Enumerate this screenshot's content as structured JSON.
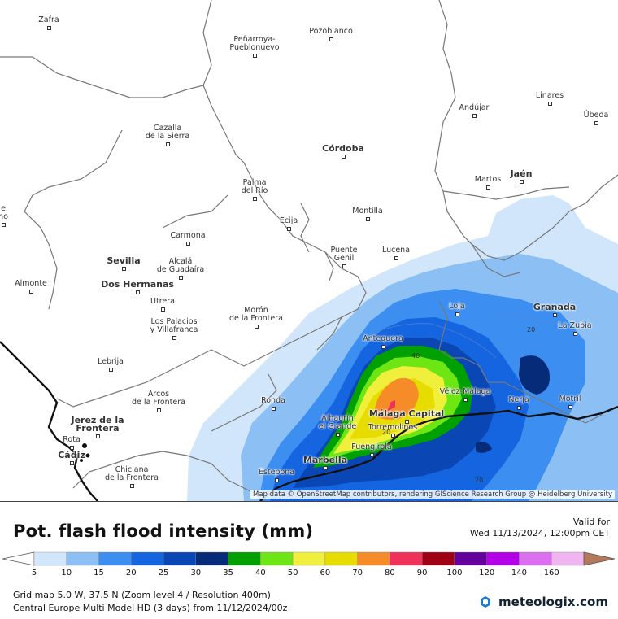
{
  "map": {
    "attribution": "Map data © OpenStreetMap contributors, rendering GIScience Research Group @ Heidelberg University",
    "cities": [
      {
        "name": "Zafra",
        "major": false
      },
      {
        "name": "Peñarroya-\nPueblonuevo",
        "major": false
      },
      {
        "name": "Pozoblanco",
        "major": false
      },
      {
        "name": "Linares",
        "major": false
      },
      {
        "name": "Andújar",
        "major": false
      },
      {
        "name": "Úbeda",
        "major": false
      },
      {
        "name": "Cazalla\nde la Sierra",
        "major": false
      },
      {
        "name": "Córdoba",
        "major": true
      },
      {
        "name": "Palma\ndel Río",
        "major": false
      },
      {
        "name": "Martos",
        "major": false
      },
      {
        "name": "Jaén",
        "major": true
      },
      {
        "name": "Écija",
        "major": false
      },
      {
        "name": "Montilla",
        "major": false
      },
      {
        "name": "Carmona",
        "major": false
      },
      {
        "name": "Sevilla",
        "major": true
      },
      {
        "name": "Alcalá\nde Guadaíra",
        "major": false
      },
      {
        "name": "Puente\nGenil",
        "major": false
      },
      {
        "name": "Lucena",
        "major": false
      },
      {
        "name": "Almonte",
        "major": false
      },
      {
        "name": "Dos Hermanas",
        "major": true
      },
      {
        "name": "Utrera",
        "major": false
      },
      {
        "name": "Los Palacios\ny Villafranca",
        "major": false
      },
      {
        "name": "Morón\nde la Frontera",
        "major": false
      },
      {
        "name": "Loja",
        "major": false
      },
      {
        "name": "Granada",
        "major": true
      },
      {
        "name": "La Zubia",
        "major": false
      },
      {
        "name": "Antequera",
        "major": false
      },
      {
        "name": "Lebrija",
        "major": false
      },
      {
        "name": "Arcos\nde la Frontera",
        "major": false
      },
      {
        "name": "Ronda",
        "major": false
      },
      {
        "name": "Vélez-Málaga",
        "major": false
      },
      {
        "name": "Nerja",
        "major": false
      },
      {
        "name": "Motril",
        "major": false
      },
      {
        "name": "Jerez de la\nFrontera",
        "major": true
      },
      {
        "name": "Alhaurín\nel Grande",
        "major": false
      },
      {
        "name": "Málaga Capital",
        "major": true
      },
      {
        "name": "Torremolinos",
        "major": false
      },
      {
        "name": "Rota",
        "major": false
      },
      {
        "name": "Cádiz",
        "major": true
      },
      {
        "name": "Fuengirola",
        "major": false
      },
      {
        "name": "Chiclana\nde la Frontera",
        "major": false
      },
      {
        "name": "Marbella",
        "major": true
      },
      {
        "name": "Estepona",
        "major": false
      },
      {
        "name": "e\nno",
        "major": false
      }
    ],
    "contour_labels": [
      "40",
      "20",
      "20",
      "20"
    ]
  },
  "footer": {
    "title": "Pot. flash flood intensity (mm)",
    "valid_label": "Valid for",
    "valid_value": "Wed 11/13/2024, 12:00pm CET",
    "legend": {
      "ticks": [
        "5",
        "10",
        "15",
        "20",
        "25",
        "30",
        "35",
        "40",
        "50",
        "60",
        "70",
        "80",
        "90",
        "100",
        "120",
        "140",
        "160"
      ],
      "colors": [
        "#d2e6fb",
        "#8cc0f5",
        "#3c8ff0",
        "#1565e0",
        "#0a47b4",
        "#062b78",
        "#00a000",
        "#6ee614",
        "#f0f03c",
        "#e6dc00",
        "#f58c28",
        "#f0325a",
        "#a00014",
        "#64009b",
        "#b400e6",
        "#dc6ef0",
        "#f0b4f0",
        "#b4785a"
      ],
      "left_arrow_color": "#ffffff",
      "right_arrow_color": "#b4785a"
    },
    "grid_info": "Grid map 5.0 W, 37.5 N (Zoom level 4 / Resolution 400m)",
    "model_info": "Central Europe Multi Model HD (3 days) from  11/12/2024/00z",
    "brand": "meteologix.com"
  }
}
